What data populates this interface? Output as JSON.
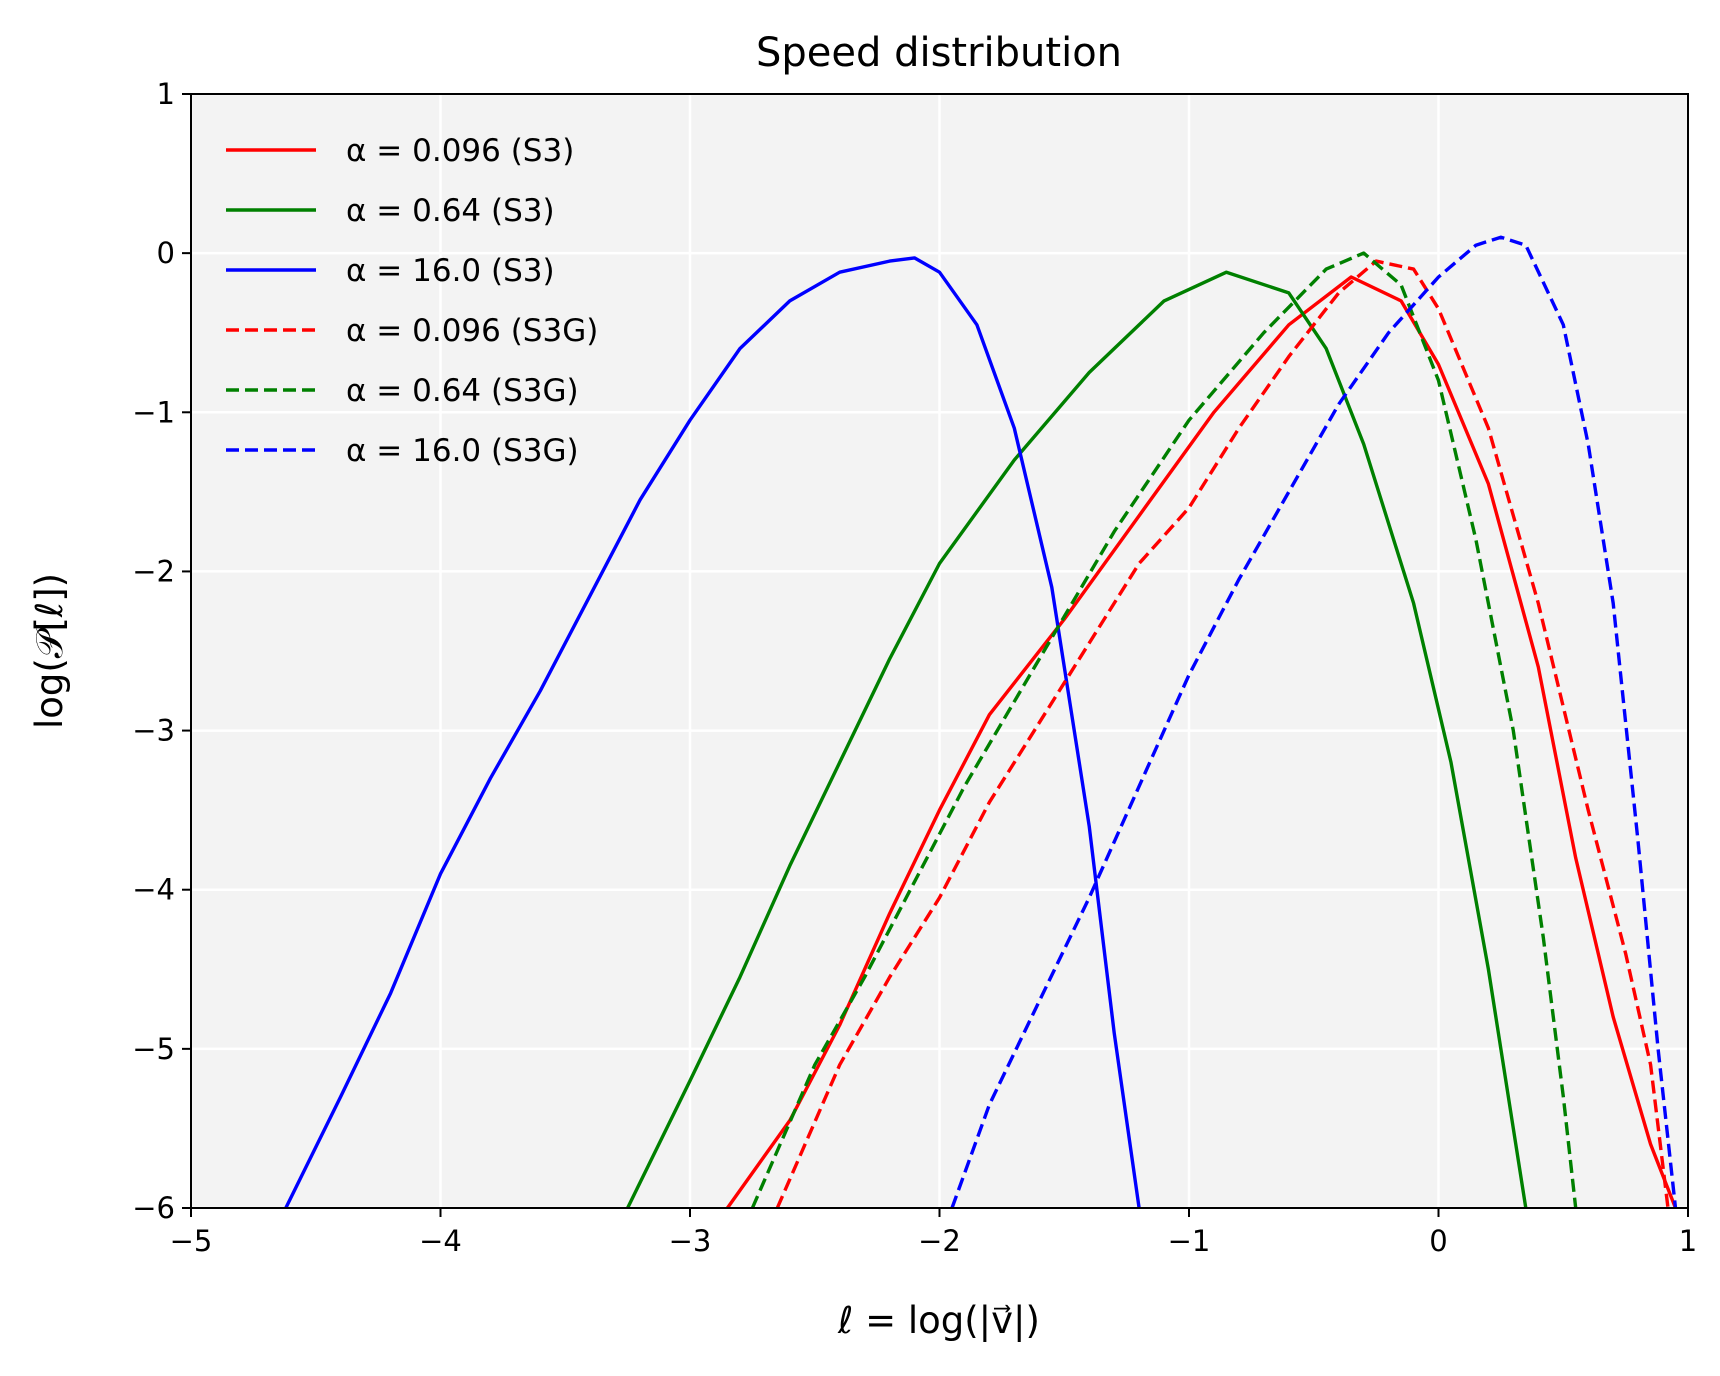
{
  "chart_data": {
    "type": "line",
    "title": "Speed distribution",
    "xlabel": "ℓ = log(|v⃗|)",
    "ylabel": "log(𝒫[ℓ])",
    "xlim": [
      -5,
      1
    ],
    "ylim": [
      -6,
      1
    ],
    "xticks": [
      -5,
      -4,
      -3,
      -2,
      -1,
      0,
      1
    ],
    "yticks": [
      -6,
      -5,
      -4,
      -3,
      -2,
      -1,
      0,
      1
    ],
    "xtick_labels": [
      "−5",
      "−4",
      "−3",
      "−2",
      "−1",
      "0",
      "1"
    ],
    "ytick_labels": [
      "−6",
      "−5",
      "−4",
      "−3",
      "−2",
      "−1",
      "0",
      "1"
    ],
    "grid": true,
    "legend_position": "top-left",
    "series": [
      {
        "name": "α = 0.096 (S3)",
        "color": "#ff0000",
        "dash": "solid",
        "x": [
          -2.85,
          -2.6,
          -2.4,
          -2.2,
          -2.0,
          -1.8,
          -1.5,
          -1.2,
          -0.9,
          -0.6,
          -0.35,
          -0.15,
          0.0,
          0.2,
          0.4,
          0.55,
          0.7,
          0.85,
          0.95
        ],
        "y": [
          -6.0,
          -5.45,
          -4.85,
          -4.15,
          -3.5,
          -2.9,
          -2.3,
          -1.65,
          -1.0,
          -0.45,
          -0.15,
          -0.3,
          -0.7,
          -1.45,
          -2.6,
          -3.8,
          -4.8,
          -5.6,
          -6.0
        ]
      },
      {
        "name": "α = 0.64 (S3)",
        "color": "#008000",
        "dash": "solid",
        "x": [
          -3.25,
          -3.0,
          -2.8,
          -2.6,
          -2.4,
          -2.2,
          -2.0,
          -1.7,
          -1.4,
          -1.1,
          -0.85,
          -0.6,
          -0.45,
          -0.3,
          -0.1,
          0.05,
          0.2,
          0.3,
          0.35
        ],
        "y": [
          -6.0,
          -5.2,
          -4.55,
          -3.85,
          -3.2,
          -2.55,
          -1.95,
          -1.3,
          -0.75,
          -0.3,
          -0.12,
          -0.25,
          -0.6,
          -1.2,
          -2.2,
          -3.2,
          -4.5,
          -5.5,
          -6.0
        ]
      },
      {
        "name": "α = 16.0 (S3)",
        "color": "#0000ff",
        "dash": "solid",
        "x": [
          -4.62,
          -4.4,
          -4.2,
          -4.0,
          -3.8,
          -3.6,
          -3.4,
          -3.2,
          -3.0,
          -2.8,
          -2.6,
          -2.4,
          -2.2,
          -2.1,
          -2.0,
          -1.85,
          -1.7,
          -1.55,
          -1.4,
          -1.3,
          -1.2
        ],
        "y": [
          -6.0,
          -5.3,
          -4.65,
          -3.9,
          -3.3,
          -2.75,
          -2.15,
          -1.55,
          -1.05,
          -0.6,
          -0.3,
          -0.12,
          -0.05,
          -0.03,
          -0.12,
          -0.45,
          -1.1,
          -2.1,
          -3.6,
          -4.9,
          -6.0
        ]
      },
      {
        "name": "α = 0.096 (S3G)",
        "color": "#ff0000",
        "dash": "dashed",
        "x": [
          -2.65,
          -2.4,
          -2.2,
          -2.0,
          -1.8,
          -1.5,
          -1.2,
          -1.0,
          -0.8,
          -0.6,
          -0.4,
          -0.25,
          -0.1,
          0.0,
          0.2,
          0.4,
          0.6,
          0.75,
          0.85,
          0.92
        ],
        "y": [
          -6.0,
          -5.1,
          -4.55,
          -4.05,
          -3.45,
          -2.7,
          -1.95,
          -1.6,
          -1.1,
          -0.65,
          -0.25,
          -0.05,
          -0.1,
          -0.35,
          -1.1,
          -2.2,
          -3.5,
          -4.4,
          -5.1,
          -6.0
        ]
      },
      {
        "name": "α = 0.64 (S3G)",
        "color": "#008000",
        "dash": "dashed",
        "x": [
          -2.75,
          -2.5,
          -2.3,
          -2.1,
          -1.9,
          -1.6,
          -1.3,
          -1.0,
          -0.7,
          -0.45,
          -0.3,
          -0.15,
          0.0,
          0.15,
          0.3,
          0.42,
          0.5,
          0.55
        ],
        "y": [
          -6.0,
          -5.1,
          -4.55,
          -3.95,
          -3.35,
          -2.55,
          -1.75,
          -1.05,
          -0.5,
          -0.1,
          0.0,
          -0.2,
          -0.8,
          -1.8,
          -3.0,
          -4.3,
          -5.3,
          -6.0
        ]
      },
      {
        "name": "α = 16.0 (S3G)",
        "color": "#0000ff",
        "dash": "dashed",
        "x": [
          -1.95,
          -1.8,
          -1.6,
          -1.4,
          -1.2,
          -1.0,
          -0.8,
          -0.6,
          -0.4,
          -0.2,
          0.0,
          0.15,
          0.25,
          0.35,
          0.5,
          0.6,
          0.7,
          0.8,
          0.88,
          0.95
        ],
        "y": [
          -6.0,
          -5.35,
          -4.7,
          -4.05,
          -3.35,
          -2.65,
          -2.05,
          -1.5,
          -0.95,
          -0.5,
          -0.15,
          0.05,
          0.1,
          0.05,
          -0.45,
          -1.2,
          -2.2,
          -3.7,
          -5.0,
          -6.0
        ]
      }
    ]
  }
}
